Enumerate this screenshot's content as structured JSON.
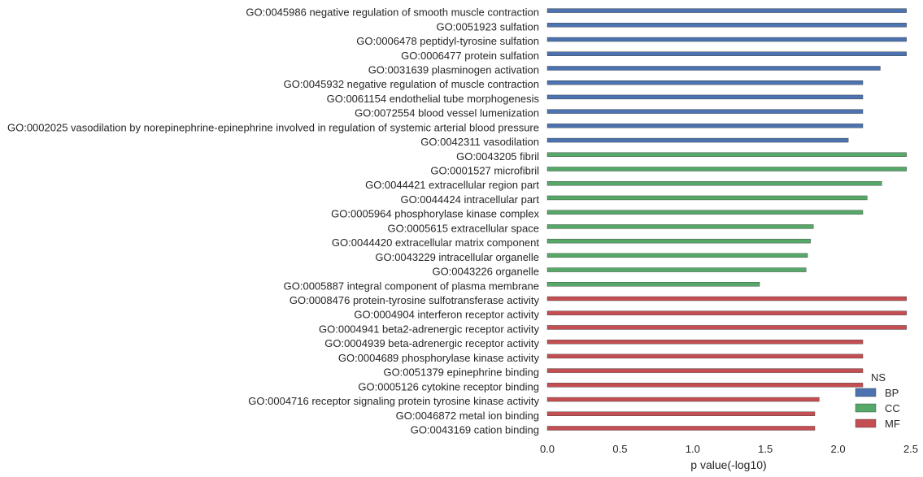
{
  "chart_data": {
    "type": "bar",
    "orientation": "horizontal",
    "xlabel": "p value(-log10)",
    "ylabel": "",
    "xlim": [
      0.0,
      2.5
    ],
    "xticks": [
      "0.0",
      "0.5",
      "1.0",
      "1.5",
      "2.0",
      "2.5"
    ],
    "grid": false,
    "legend": {
      "title": "NS",
      "placement": "lower-right",
      "entries": [
        {
          "name": "BP",
          "color": "#4c72b0"
        },
        {
          "name": "CC",
          "color": "#55a868"
        },
        {
          "name": "MF",
          "color": "#c44e52"
        }
      ]
    },
    "series": [
      {
        "name": "BP",
        "color": "#4c72b0",
        "categories": [
          "GO:0045986 negative regulation of smooth muscle contraction",
          "GO:0051923 sulfation",
          "GO:0006478 peptidyl-tyrosine sulfation",
          "GO:0006477 protein sulfation",
          "GO:0031639 plasminogen activation",
          "GO:0045932 negative regulation of muscle contraction",
          "GO:0061154 endothelial tube morphogenesis",
          "GO:0072554 blood vessel lumenization",
          "GO:0002025 vasodilation by norepinephrine-epinephrine involved in regulation of systemic arterial blood pressure",
          "GO:0042311 vasodilation"
        ],
        "values": [
          2.47,
          2.47,
          2.47,
          2.47,
          2.29,
          2.17,
          2.17,
          2.17,
          2.17,
          2.07
        ]
      },
      {
        "name": "CC",
        "color": "#55a868",
        "categories": [
          "GO:0043205 fibril",
          "GO:0001527 microfibril",
          "GO:0044421 extracellular region part",
          "GO:0044424 intracellular part",
          "GO:0005964 phosphorylase kinase complex",
          "GO:0005615 extracellular space",
          "GO:0044420 extracellular matrix component",
          "GO:0043229 intracellular organelle",
          "GO:0043226 organelle",
          "GO:0005887 integral component of plasma membrane"
        ],
        "values": [
          2.47,
          2.47,
          2.3,
          2.2,
          2.17,
          1.83,
          1.81,
          1.79,
          1.78,
          1.46
        ]
      },
      {
        "name": "MF",
        "color": "#c44e52",
        "categories": [
          "GO:0008476 protein-tyrosine sulfotransferase activity",
          "GO:0004904 interferon receptor activity",
          "GO:0004941 beta2-adrenergic receptor activity",
          "GO:0004939 beta-adrenergic receptor activity",
          "GO:0004689 phosphorylase kinase activity",
          "GO:0051379 epinephrine binding",
          "GO:0005126 cytokine receptor binding",
          "GO:0004716 receptor signaling protein tyrosine kinase activity",
          "GO:0046872 metal ion binding",
          "GO:0043169 cation binding"
        ],
        "values": [
          2.47,
          2.47,
          2.47,
          2.17,
          2.17,
          2.17,
          2.17,
          1.87,
          1.84,
          1.84
        ]
      }
    ]
  }
}
